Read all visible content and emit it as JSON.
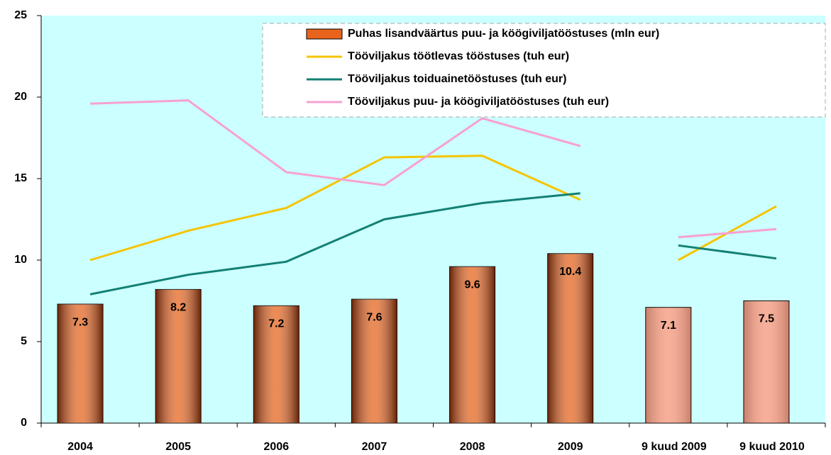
{
  "chart_data": {
    "type": "bar_line",
    "categories": [
      "2004",
      "2005",
      "2006",
      "2007",
      "2008",
      "2009",
      "9 kuud 2009",
      "9 kuud 2010"
    ],
    "bars": {
      "name": "Puhas lisandväärtus puu- ja köögiviljatööstuses (mln eur)",
      "values": [
        7.3,
        8.2,
        7.2,
        7.6,
        9.6,
        10.4,
        7.1,
        7.5
      ],
      "colors": [
        "#e8641c",
        "#e8641c",
        "#e8641c",
        "#e8641c",
        "#e8641c",
        "#e8641c",
        "#f8a890",
        "#f8a890"
      ]
    },
    "series": [
      {
        "name": "Tööviljakus töötlevas tööstuses (tuh eur)",
        "color": "#f5c400",
        "values": [
          10.0,
          11.8,
          13.2,
          16.3,
          16.4,
          13.7,
          10.0,
          13.3
        ]
      },
      {
        "name": "Tööviljakus toiduainetööstuses (tuh eur)",
        "color": "#138074",
        "values": [
          7.9,
          9.1,
          9.9,
          12.5,
          13.5,
          14.1,
          10.9,
          10.1
        ]
      },
      {
        "name": "Tööviljakus puu- ja köögiviljatööstuses (tuh eur)",
        "color": "#f7a0d0",
        "values": [
          19.6,
          19.8,
          15.4,
          14.6,
          18.7,
          17.0,
          11.4,
          11.9
        ]
      }
    ],
    "line_break_after_category": 5,
    "ylim": [
      0,
      25
    ],
    "yticks": [
      0,
      5,
      10,
      15,
      20,
      25
    ],
    "plot_background": "#ccffff"
  }
}
